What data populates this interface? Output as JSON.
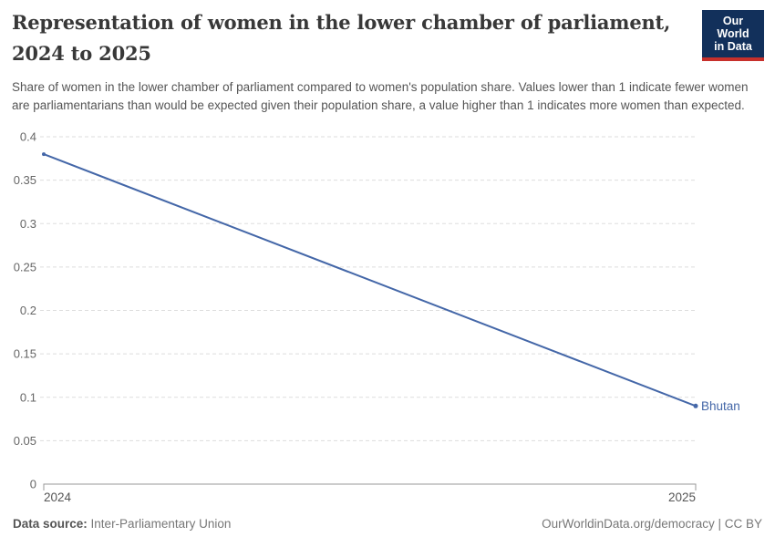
{
  "header": {
    "title": "Representation of women in the lower chamber of parliament, 2024 to 2025",
    "subtitle": "Share of women in the lower chamber of parliament compared to women's population share. Values lower than 1 indicate fewer women are parliamentarians than would be expected given their population share, a value higher than 1 indicates more women than expected.",
    "logo": {
      "line1": "Our World",
      "line2": "in Data"
    }
  },
  "chart_data": {
    "type": "line",
    "title": "Representation of women in the lower chamber of parliament, 2024 to 2025",
    "x": [
      2024,
      2025
    ],
    "xticks": [
      "2024",
      "2025"
    ],
    "xlim": [
      2024,
      2025
    ],
    "series": [
      {
        "name": "Bhutan",
        "values": [
          0.38,
          0.09
        ],
        "color": "#4467a8"
      }
    ],
    "yticks": [
      0,
      0.05,
      0.1,
      0.15,
      0.2,
      0.25,
      0.3,
      0.35,
      0.4
    ],
    "ylim": [
      0,
      0.4
    ],
    "xlabel": "",
    "ylabel": "",
    "grid": "horizontal-dashed",
    "legend": "entity label at end of line"
  },
  "colors": {
    "grid": "#dddddd",
    "axis": "#9a9a9a",
    "y_tick_label": "#666666",
    "x_tick_label": "#555555",
    "title": "#383838",
    "subtitle": "#555555",
    "footer": "#777777",
    "logo_bg": "#12305b",
    "logo_accent": "#c7302b"
  },
  "footer": {
    "source_label": "Data source:",
    "source_value": "Inter-Parliamentary Union",
    "credit": "OurWorldinData.org/democracy | CC BY"
  }
}
